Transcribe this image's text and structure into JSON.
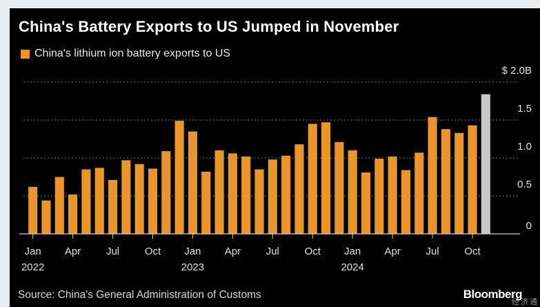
{
  "title": "China's Battery Exports to US Jumped in November",
  "source": "Source: China's General Administration of Customs",
  "brand": "Bloomberg",
  "watermark": "经济通",
  "colors": {
    "bar": "#e8952e",
    "highlight": "#c8c8c8",
    "grid": "#777777",
    "axis": "#cccccc",
    "background": "#000000"
  },
  "chart_data": {
    "type": "bar",
    "title": "China's Battery Exports to US Jumped in November",
    "legend": [
      "China's lithium ion battery exports to US"
    ],
    "legend_position": "top-left",
    "y_axis_position": "right",
    "ylim": [
      0,
      2.0
    ],
    "y_ticks": [
      {
        "value": 0,
        "label": "0"
      },
      {
        "value": 0.5,
        "label": "0.5"
      },
      {
        "value": 1.0,
        "label": "1.0"
      },
      {
        "value": 1.5,
        "label": "1.5"
      },
      {
        "value": 2.0,
        "label": "$ 2.0B"
      }
    ],
    "grid": true,
    "x_ticks": [
      {
        "index": 0,
        "label": "Jan",
        "year": "2022"
      },
      {
        "index": 3,
        "label": "Apr"
      },
      {
        "index": 6,
        "label": "Jul"
      },
      {
        "index": 9,
        "label": "Oct"
      },
      {
        "index": 12,
        "label": "Jan",
        "year": "2023"
      },
      {
        "index": 15,
        "label": "Apr"
      },
      {
        "index": 18,
        "label": "Jul"
      },
      {
        "index": 21,
        "label": "Oct"
      },
      {
        "index": 24,
        "label": "Jan",
        "year": "2024"
      },
      {
        "index": 27,
        "label": "Apr"
      },
      {
        "index": 30,
        "label": "Jul"
      },
      {
        "index": 33,
        "label": "Oct"
      }
    ],
    "categories": [
      "Jan 2022",
      "Feb 2022",
      "Mar 2022",
      "Apr 2022",
      "May 2022",
      "Jun 2022",
      "Jul 2022",
      "Aug 2022",
      "Sep 2022",
      "Oct 2022",
      "Nov 2022",
      "Dec 2022",
      "Jan 2023",
      "Feb 2023",
      "Mar 2023",
      "Apr 2023",
      "May 2023",
      "Jun 2023",
      "Jul 2023",
      "Aug 2023",
      "Sep 2023",
      "Oct 2023",
      "Nov 2023",
      "Dec 2023",
      "Jan 2024",
      "Feb 2024",
      "Mar 2024",
      "Apr 2024",
      "May 2024",
      "Jun 2024",
      "Jul 2024",
      "Aug 2024",
      "Sep 2024",
      "Oct 2024",
      "Nov 2024"
    ],
    "values": [
      0.62,
      0.44,
      0.75,
      0.52,
      0.85,
      0.87,
      0.71,
      0.97,
      0.92,
      0.86,
      1.09,
      1.49,
      1.35,
      0.82,
      1.1,
      1.06,
      1.02,
      0.85,
      0.98,
      1.03,
      1.18,
      1.45,
      1.47,
      1.21,
      1.1,
      0.81,
      0.99,
      1.02,
      0.84,
      1.07,
      1.54,
      1.38,
      1.33,
      1.43,
      1.84
    ],
    "highlight_index": 34
  }
}
